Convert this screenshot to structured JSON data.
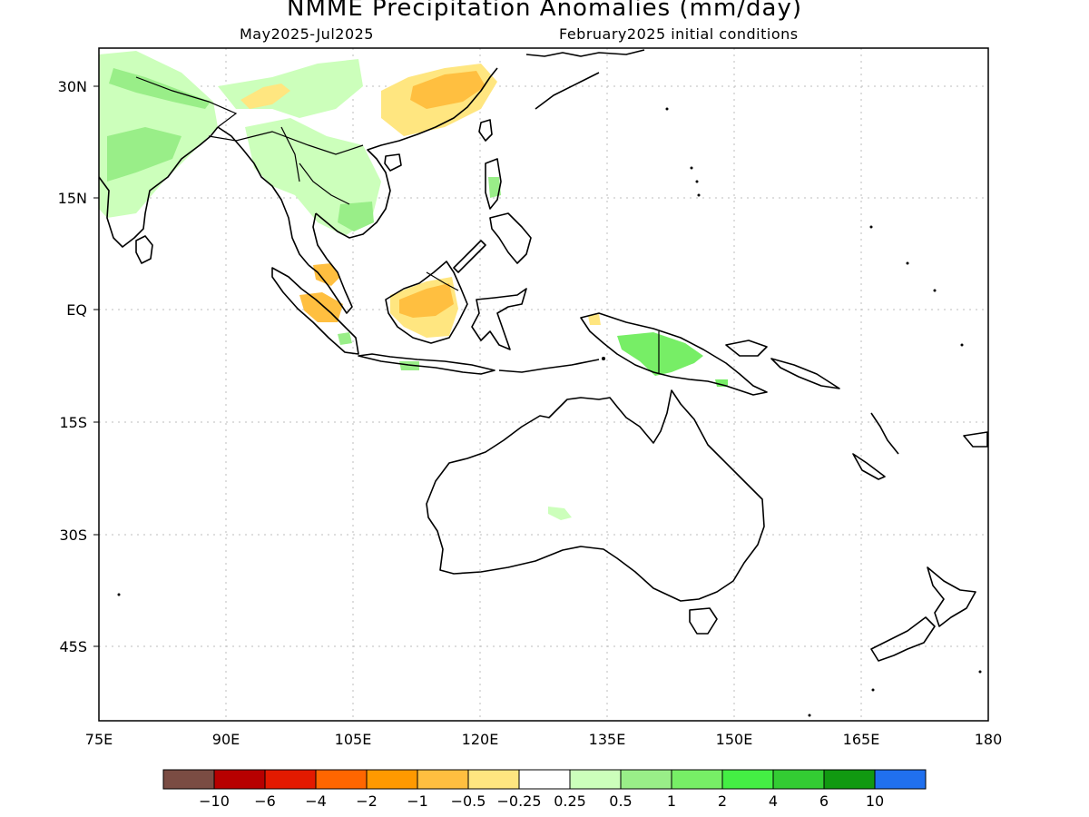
{
  "title": "NMME Precipitation Anomalies (mm/day)",
  "subtitle_left": "May2025-Jul2025",
  "subtitle_right": "February2025 initial conditions",
  "map": {
    "lon_range": [
      75,
      180
    ],
    "lat_range": [
      -55,
      35
    ],
    "lon_ticks": [
      "75E",
      "90E",
      "105E",
      "120E",
      "135E",
      "150E",
      "165E",
      "180"
    ],
    "lat_ticks": [
      "30N",
      "15N",
      "EQ",
      "15S",
      "30S",
      "45S"
    ],
    "gridlines": "dotted"
  },
  "colorbar": {
    "colors": [
      "#7a4c43",
      "#b70000",
      "#e31a00",
      "#ff6600",
      "#ff9900",
      "#ffbf40",
      "#ffe680",
      "#ffffff",
      "#ccffbb",
      "#99ee88",
      "#77ee66",
      "#44ee44",
      "#33cc33",
      "#119911",
      "#2070ee"
    ],
    "labels": [
      "-10",
      "-6",
      "-4",
      "-2",
      "-1",
      "-0.5",
      "-0.25",
      "0.25",
      "0.5",
      "1",
      "2",
      "4",
      "6",
      "10"
    ]
  }
}
